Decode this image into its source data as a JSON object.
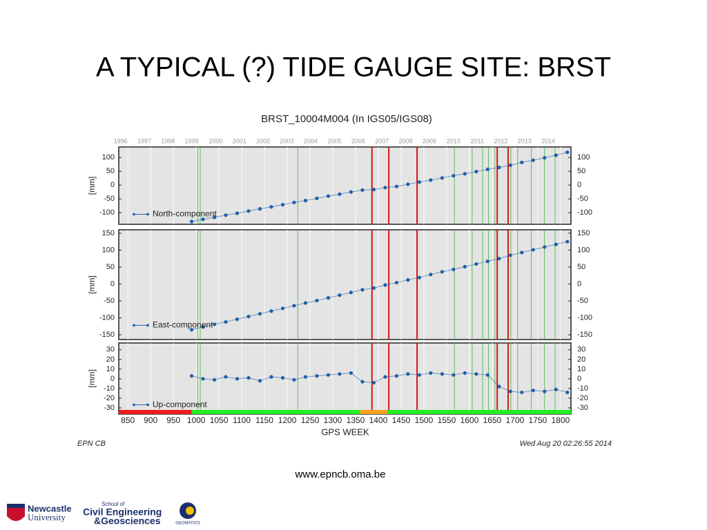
{
  "slide_title": "A TYPICAL (?) TIDE GAUGE SITE:  BRST",
  "url": "www.epncb.oma.be",
  "footer_left": "EPN CB",
  "footer_right": "Wed Aug 20 02:26:55 2014",
  "logos": {
    "newcastle": [
      "Newcastle",
      "University"
    ],
    "school": [
      "School of",
      "Civil Engineering",
      "&Geosciences"
    ],
    "geomatics": "GEOMATICS"
  },
  "chart_data": {
    "type": "scatter",
    "title": "BRST_10004M004 (In IGS05/IGS08)",
    "xlabel": "GPS WEEK",
    "ylabel": "[mm]",
    "xlim": [
      830,
      1823
    ],
    "xticks": [
      850,
      900,
      950,
      1000,
      1050,
      1100,
      1150,
      1200,
      1250,
      1300,
      1350,
      1400,
      1450,
      1500,
      1550,
      1600,
      1650,
      1700,
      1750,
      1800
    ],
    "top_ticks": [
      {
        "value": 834,
        "label": "1996"
      },
      {
        "value": 886,
        "label": "1997"
      },
      {
        "value": 938,
        "label": "1998"
      },
      {
        "value": 990,
        "label": "1999"
      },
      {
        "value": 1043,
        "label": "2000"
      },
      {
        "value": 1095,
        "label": "2001"
      },
      {
        "value": 1147,
        "label": "2002"
      },
      {
        "value": 1199,
        "label": "2003"
      },
      {
        "value": 1251,
        "label": "2004"
      },
      {
        "value": 1304,
        "label": "2005"
      },
      {
        "value": 1356,
        "label": "2006"
      },
      {
        "value": 1408,
        "label": "2007"
      },
      {
        "value": 1460,
        "label": "2008"
      },
      {
        "value": 1512,
        "label": "2009"
      },
      {
        "value": 1565,
        "label": "2010"
      },
      {
        "value": 1617,
        "label": "2011"
      },
      {
        "value": 1669,
        "label": "2012"
      },
      {
        "value": 1721,
        "label": "2013"
      },
      {
        "value": 1773,
        "label": "2014"
      }
    ],
    "x": [
      990,
      1015,
      1040,
      1065,
      1090,
      1115,
      1140,
      1165,
      1190,
      1215,
      1240,
      1265,
      1290,
      1315,
      1340,
      1365,
      1390,
      1415,
      1440,
      1465,
      1490,
      1515,
      1540,
      1565,
      1590,
      1615,
      1640,
      1665,
      1690,
      1715,
      1740,
      1765,
      1790,
      1815
    ],
    "series": [
      {
        "name": "North-component",
        "color": "#1f5fa8",
        "values": [
          -132,
          -124,
          -117,
          -109,
          -102,
          -94,
          -86,
          -79,
          -71,
          -63,
          -56,
          -48,
          -40,
          -33,
          -25,
          -18,
          -16,
          -9,
          -5,
          3,
          11,
          18,
          26,
          34,
          41,
          49,
          57,
          64,
          72,
          82,
          90,
          99,
          108,
          119
        ],
        "ylim": [
          -142,
          138
        ],
        "yticks": [
          -100,
          -50,
          0,
          50,
          100
        ],
        "y2ticks": [
          -100,
          -50,
          0,
          50,
          100
        ]
      },
      {
        "name": "East-component",
        "color": "#1f5fa8",
        "values": [
          -135,
          -127,
          -119,
          -112,
          -104,
          -96,
          -88,
          -80,
          -72,
          -64,
          -56,
          -49,
          -41,
          -33,
          -25,
          -17,
          -12,
          -3,
          4,
          12,
          19,
          28,
          36,
          43,
          51,
          59,
          67,
          75,
          85,
          93,
          101,
          109,
          117,
          125
        ],
        "ylim": [
          -164,
          160
        ],
        "yticks": [
          -150,
          -100,
          -50,
          0,
          50,
          100,
          150
        ],
        "y2ticks": [
          -150,
          -100,
          -50,
          0,
          50,
          100,
          150
        ]
      },
      {
        "name": "Up-component",
        "color": "#1f5fa8",
        "values": [
          3,
          0,
          -1,
          2,
          0,
          1,
          -2,
          2,
          1,
          -1,
          2,
          3,
          4,
          5,
          6,
          -3,
          -4,
          2,
          3,
          5,
          4,
          6,
          5,
          4,
          6,
          5,
          4,
          -8,
          -13,
          -14,
          -12,
          -13,
          -11,
          -14
        ],
        "ylim": [
          -36.4,
          37
        ],
        "yticks": [
          -30,
          -20,
          -10,
          0,
          10,
          20,
          30
        ],
        "y2ticks": [
          -30,
          -20,
          -10,
          0,
          10,
          20,
          30
        ]
      }
    ],
    "red_lines": [
      1386,
      1423,
      1485,
      1661,
      1685
    ],
    "green_lines": [
      1003,
      1009,
      1223,
      1567,
      1606,
      1629,
      1642,
      1656,
      1691,
      1706,
      1736,
      1765,
      1788
    ],
    "status_bar": [
      {
        "from": 830,
        "to": 990,
        "color": "#ee1c1c"
      },
      {
        "from": 990,
        "to": 1360,
        "color": "#22ee22"
      },
      {
        "from": 1360,
        "to": 1420,
        "color": "#f7a21c"
      },
      {
        "from": 1420,
        "to": 1823,
        "color": "#22ee22"
      }
    ]
  }
}
